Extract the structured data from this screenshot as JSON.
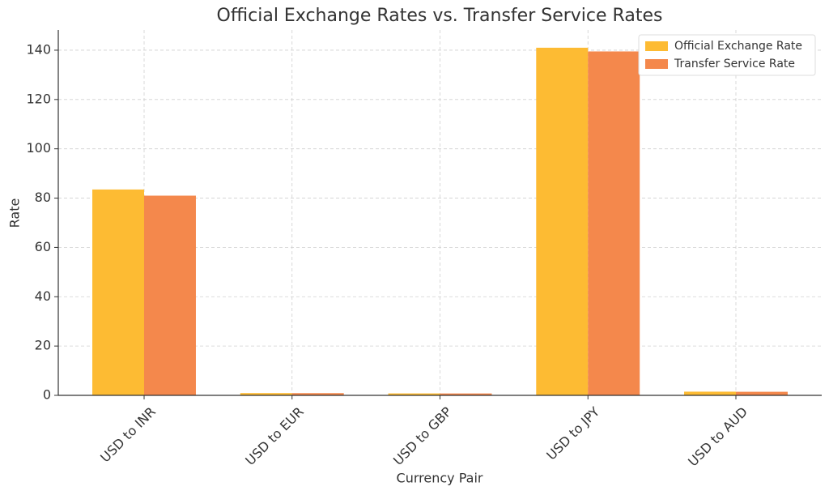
{
  "chart_data": {
    "type": "bar",
    "title": "Official Exchange Rates vs. Transfer Service Rates",
    "x_label": "Currency Pair",
    "y_label": "Rate",
    "categories": [
      "USD to INR",
      "USD to EUR",
      "USD to GBP",
      "USD to JPY",
      "USD to AUD"
    ],
    "series": [
      {
        "name": "Official Exchange Rate",
        "color": "#fdbb33",
        "values": [
          83.5,
          0.92,
          0.79,
          141,
          1.5
        ]
      },
      {
        "name": "Transfer Service Rate",
        "color": "#f4884c",
        "values": [
          81,
          0.9,
          0.77,
          139.5,
          1.45
        ]
      }
    ],
    "ylim": [
      0,
      148.2
    ],
    "yticks": [
      0,
      20,
      40,
      60,
      80,
      100,
      120,
      140
    ],
    "grid": true,
    "legend": "upper right"
  }
}
